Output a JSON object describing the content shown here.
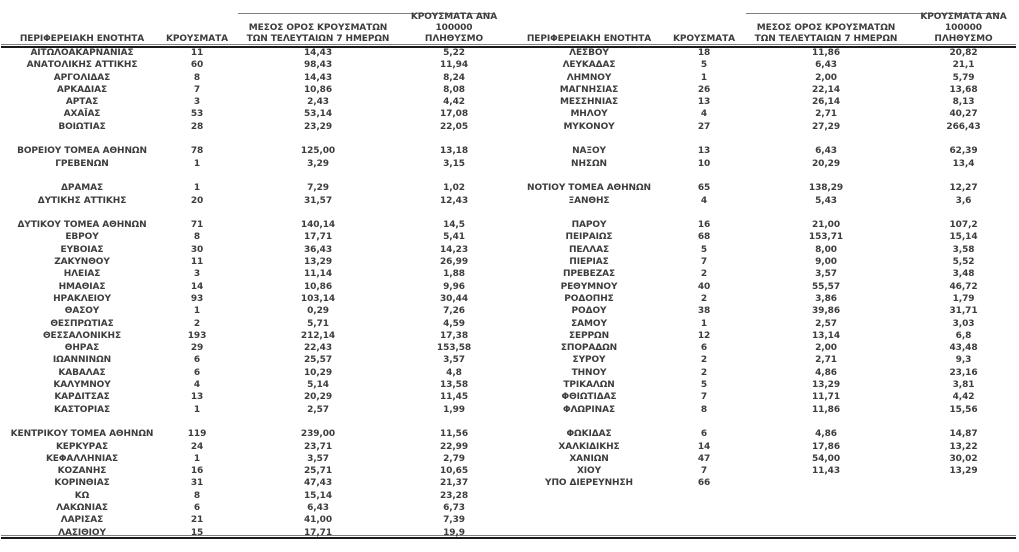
{
  "sheet": {
    "headers": [
      "ΠΕΡΙΦΕΡΕΙΑΚΗ ΕΝΟΤΗΤΑ",
      "ΚΡΟΥΣΜΑΤΑ",
      "ΜΕΣΟΣ ΟΡΟΣ ΚΡΟΥΣΜΑΤΩΝ\nΤΩΝ ΤΕΛΕΥΤΑΙΩΝ 7 ΗΜΕΡΩΝ",
      "ΚΡΟΥΣΜΑΤΑ ΑΝΑ 100000\nΠΛΗΘΥΣΜΟ"
    ],
    "colors": {
      "text": "#3d3d3d",
      "rule_thin": "#808080",
      "rule_thick": "#1a1a1a",
      "background": "#ffffff"
    },
    "tables": [
      {
        "rows": [
          [
            "ΑΙΤΩΛΟΑΚΑΡΝΑΝΙΑΣ",
            "11",
            "14,43",
            "5,22"
          ],
          [
            "ΑΝΑΤΟΛΙΚΗΣ ΑΤΤΙΚΗΣ",
            "60",
            "98,43",
            "11,94"
          ],
          [
            "ΑΡΓΟΛΙΔΑΣ",
            "8",
            "14,43",
            "8,24"
          ],
          [
            "ΑΡΚΑΔΙΑΣ",
            "7",
            "10,86",
            "8,08"
          ],
          [
            "ΑΡΤΑΣ",
            "3",
            "2,43",
            "4,42"
          ],
          [
            "ΑΧΑΪΑΣ",
            "53",
            "53,14",
            "17,08"
          ],
          [
            "ΒΟΙΩΤΙΑΣ",
            "28",
            "23,29",
            "22,05"
          ],
          [
            "",
            "",
            "",
            ""
          ],
          [
            "ΒΟΡΕΙΟΥ ΤΟΜΕΑ ΑΘΗΝΩΝ",
            "78",
            "125,00",
            "13,18"
          ],
          [
            "ΓΡΕΒΕΝΩΝ",
            "1",
            "3,29",
            "3,15"
          ],
          [
            "",
            "",
            "",
            ""
          ],
          [
            "ΔΡΑΜΑΣ",
            "1",
            "7,29",
            "1,02"
          ],
          [
            "ΔΥΤΙΚΗΣ ΑΤΤΙΚΗΣ",
            "20",
            "31,57",
            "12,43"
          ],
          [
            "",
            "",
            "",
            ""
          ],
          [
            "ΔΥΤΙΚΟΥ ΤΟΜΕΑ ΑΘΗΝΩΝ",
            "71",
            "140,14",
            "14,5"
          ],
          [
            "ΕΒΡΟΥ",
            "8",
            "17,71",
            "5,41"
          ],
          [
            "ΕΥΒΟΙΑΣ",
            "30",
            "36,43",
            "14,23"
          ],
          [
            "ΖΑΚΥΝΘΟΥ",
            "11",
            "13,29",
            "26,99"
          ],
          [
            "ΗΛΕΙΑΣ",
            "3",
            "11,14",
            "1,88"
          ],
          [
            "ΗΜΑΘΙΑΣ",
            "14",
            "10,86",
            "9,96"
          ],
          [
            "ΗΡΑΚΛΕΙΟΥ",
            "93",
            "103,14",
            "30,44"
          ],
          [
            "ΘΑΣΟΥ",
            "1",
            "0,29",
            "7,26"
          ],
          [
            "ΘΕΣΠΡΩΤΙΑΣ",
            "2",
            "5,71",
            "4,59"
          ],
          [
            "ΘΕΣΣΑΛΟΝΙΚΗΣ",
            "193",
            "212,14",
            "17,38"
          ],
          [
            "ΘΗΡΑΣ",
            "29",
            "22,43",
            "153,58"
          ],
          [
            "ΙΩΑΝΝΙΝΩΝ",
            "6",
            "25,57",
            "3,57"
          ],
          [
            "ΚΑΒΑΛΑΣ",
            "6",
            "10,29",
            "4,8"
          ],
          [
            "ΚΑΛΥΜΝΟΥ",
            "4",
            "5,14",
            "13,58"
          ],
          [
            "ΚΑΡΔΙΤΣΑΣ",
            "13",
            "20,29",
            "11,45"
          ],
          [
            "ΚΑΣΤΟΡΙΑΣ",
            "1",
            "2,57",
            "1,99"
          ],
          [
            "",
            "",
            "",
            ""
          ],
          [
            "ΚΕΝΤΡΙΚΟΥ ΤΟΜΕΑ ΑΘΗΝΩΝ",
            "119",
            "239,00",
            "11,56"
          ],
          [
            "ΚΕΡΚΥΡΑΣ",
            "24",
            "23,71",
            "22,99"
          ],
          [
            "ΚΕΦΑΛΛΗΝΙΑΣ",
            "1",
            "3,57",
            "2,79"
          ],
          [
            "ΚΟΖΑΝΗΣ",
            "16",
            "25,71",
            "10,65"
          ],
          [
            "ΚΟΡΙΝΘΙΑΣ",
            "31",
            "47,43",
            "21,37"
          ],
          [
            "ΚΩ",
            "8",
            "15,14",
            "23,28"
          ],
          [
            "ΛΑΚΩΝΙΑΣ",
            "6",
            "6,43",
            "6,73"
          ],
          [
            "ΛΑΡΙΣΑΣ",
            "21",
            "41,00",
            "7,39"
          ],
          [
            "ΛΑΣΙΘΙΟΥ",
            "15",
            "17,71",
            "19,9"
          ]
        ]
      },
      {
        "rows": [
          [
            "ΛΕΣΒΟΥ",
            "18",
            "11,86",
            "20,82"
          ],
          [
            "ΛΕΥΚΑΔΑΣ",
            "5",
            "6,43",
            "21,1"
          ],
          [
            "ΛΗΜΝΟΥ",
            "1",
            "2,00",
            "5,79"
          ],
          [
            "ΜΑΓΝΗΣΙΑΣ",
            "26",
            "22,14",
            "13,68"
          ],
          [
            "ΜΕΣΣΗΝΙΑΣ",
            "13",
            "26,14",
            "8,13"
          ],
          [
            "ΜΗΛΟΥ",
            "4",
            "2,71",
            "40,27"
          ],
          [
            "ΜΥΚΟΝΟΥ",
            "27",
            "27,29",
            "266,43"
          ],
          [
            "",
            "",
            "",
            ""
          ],
          [
            "ΝΑΞΟΥ",
            "13",
            "6,43",
            "62,39"
          ],
          [
            "ΝΗΣΩΝ",
            "10",
            "20,29",
            "13,4"
          ],
          [
            "",
            "",
            "",
            ""
          ],
          [
            "ΝΟΤΙΟΥ ΤΟΜΕΑ ΑΘΗΝΩΝ",
            "65",
            "138,29",
            "12,27"
          ],
          [
            "ΞΑΝΘΗΣ",
            "4",
            "5,43",
            "3,6"
          ],
          [
            "",
            "",
            "",
            ""
          ],
          [
            "ΠΑΡΟΥ",
            "16",
            "21,00",
            "107,2"
          ],
          [
            "ΠΕΙΡΑΙΩΣ",
            "68",
            "153,71",
            "15,14"
          ],
          [
            "ΠΕΛΛΑΣ",
            "5",
            "8,00",
            "3,58"
          ],
          [
            "ΠΙΕΡΙΑΣ",
            "7",
            "9,00",
            "5,52"
          ],
          [
            "ΠΡΕΒΕΖΑΣ",
            "2",
            "3,57",
            "3,48"
          ],
          [
            "ΡΕΘΥΜΝΟΥ",
            "40",
            "55,57",
            "46,72"
          ],
          [
            "ΡΟΔΟΠΗΣ",
            "2",
            "3,86",
            "1,79"
          ],
          [
            "ΡΟΔΟΥ",
            "38",
            "39,86",
            "31,71"
          ],
          [
            "ΣΑΜΟΥ",
            "1",
            "2,57",
            "3,03"
          ],
          [
            "ΣΕΡΡΩΝ",
            "12",
            "13,14",
            "6,8"
          ],
          [
            "ΣΠΟΡΑΔΩΝ",
            "6",
            "2,00",
            "43,48"
          ],
          [
            "ΣΥΡΟΥ",
            "2",
            "2,71",
            "9,3"
          ],
          [
            "ΤΗΝΟΥ",
            "2",
            "4,86",
            "23,16"
          ],
          [
            "ΤΡΙΚΑΛΩΝ",
            "5",
            "13,29",
            "3,81"
          ],
          [
            "ΦΘΙΩΤΙΔΑΣ",
            "7",
            "11,71",
            "4,42"
          ],
          [
            "ΦΛΩΡΙΝΑΣ",
            "8",
            "11,86",
            "15,56"
          ],
          [
            "",
            "",
            "",
            ""
          ],
          [
            "ΦΩΚΙΔΑΣ",
            "6",
            "4,86",
            "14,87"
          ],
          [
            "ΧΑΛΚΙΔΙΚΗΣ",
            "14",
            "17,86",
            "13,22"
          ],
          [
            "ΧΑΝΙΩΝ",
            "47",
            "54,00",
            "30,02"
          ],
          [
            "ΧΙΟΥ",
            "7",
            "11,43",
            "13,29"
          ],
          [
            "ΥΠΟ ΔΙΕΡΕΥΝΗΣΗ",
            "66",
            "",
            ""
          ]
        ]
      }
    ]
  }
}
